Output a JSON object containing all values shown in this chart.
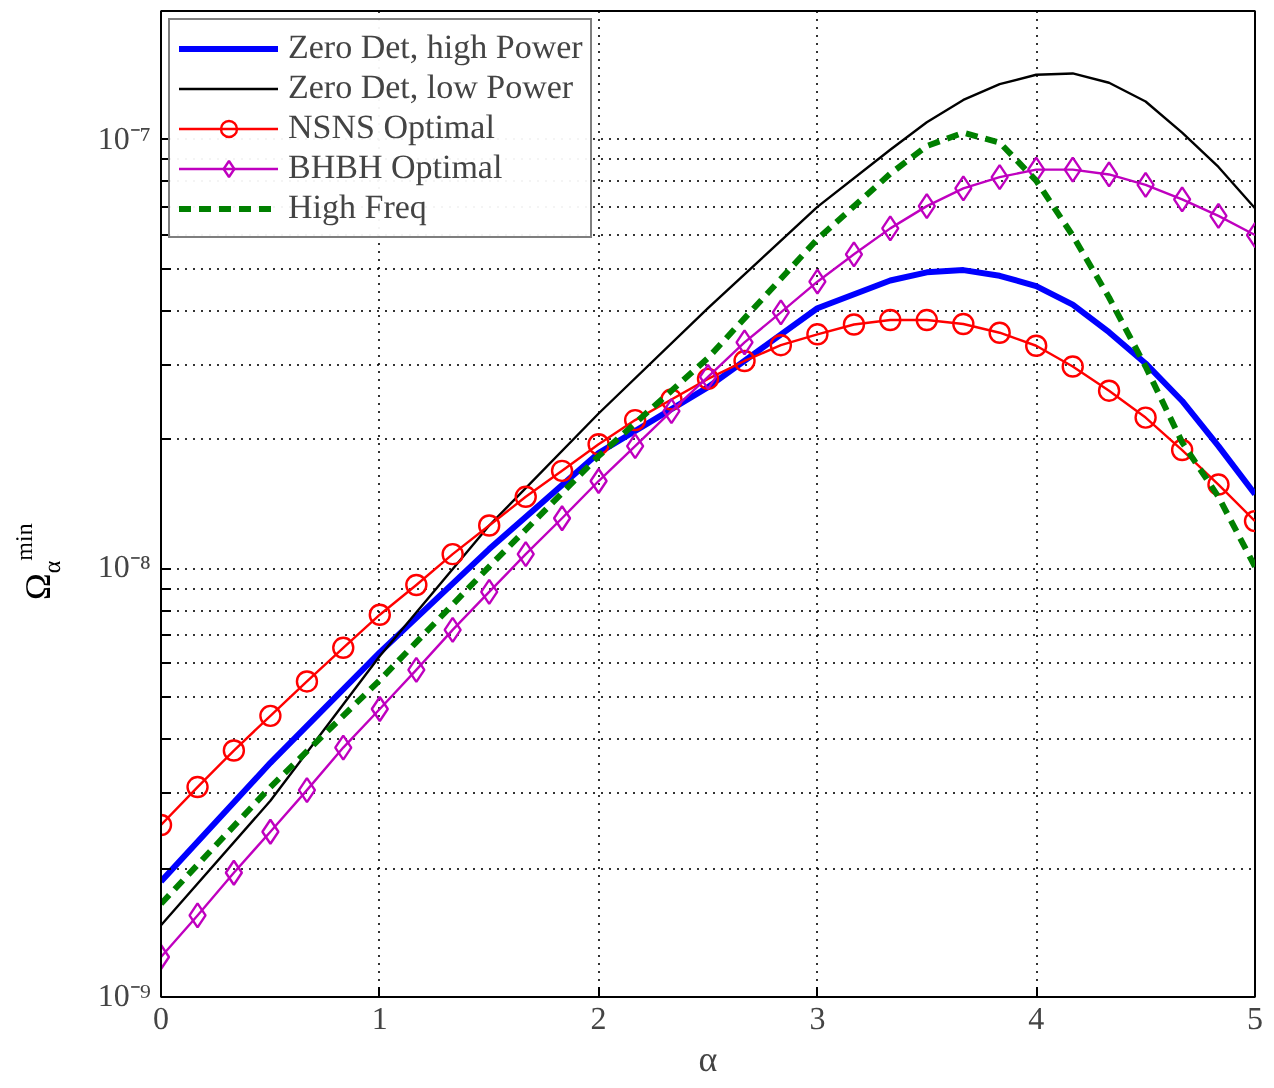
{
  "chart_data": {
    "type": "line",
    "xlabel": "α",
    "ylabel": "Ω$_{α}$$^{min}$",
    "log": "y",
    "grid": true,
    "legend": "top left",
    "xlim": [
      0,
      5
    ],
    "xticks": [
      0,
      1,
      2,
      3,
      4,
      5
    ],
    "ylim": [
      1e-09,
      2e-07
    ],
    "yticks": [
      {
        "value": 1e-09,
        "label": "10⁻⁹"
      },
      {
        "value": 2e-09,
        "label": null
      },
      {
        "value": 3e-09,
        "label": null
      },
      {
        "value": 4e-09,
        "label": null
      },
      {
        "value": 5e-09,
        "label": null
      },
      {
        "value": 6e-09,
        "label": null
      },
      {
        "value": 7e-09,
        "label": null
      },
      {
        "value": 8e-09,
        "label": null
      },
      {
        "value": 9e-09,
        "label": null
      },
      {
        "value": 1e-08,
        "label": "10⁻⁸"
      },
      {
        "value": 2e-08,
        "label": null
      },
      {
        "value": 3e-08,
        "label": null
      },
      {
        "value": 4e-08,
        "label": null
      },
      {
        "value": 5e-08,
        "label": null
      },
      {
        "value": 6e-08,
        "label": null
      },
      {
        "value": 7e-08,
        "label": null
      },
      {
        "value": 8e-08,
        "label": null
      },
      {
        "value": 9e-08,
        "label": null
      },
      {
        "value": 1e-07,
        "label": "10⁻⁷"
      },
      {
        "value": 2e-07,
        "label": null
      }
    ],
    "series": [
      {
        "name": "Zero Det, high Power",
        "color": "#0000ff",
        "marker": "none",
        "line_style": "solid",
        "x": [
          0,
          0.5,
          1,
          1.5,
          2,
          2.5,
          3,
          3.333,
          3.5,
          3.667,
          3.833,
          4,
          4.167,
          4.333,
          4.5,
          4.667,
          4.833,
          5
        ],
        "values": [
          1.86e-09,
          3.52e-09,
          6.37e-09,
          1.11e-08,
          1.86e-08,
          2.65e-08,
          4.05e-08,
          4.7e-08,
          4.91e-08,
          4.97e-08,
          4.82e-08,
          4.56e-08,
          4.13e-08,
          3.56e-08,
          3.01e-08,
          2.46e-08,
          1.93e-08,
          1.49e-08
        ]
      },
      {
        "name": "Zero Det, low Power",
        "color": "#000000",
        "marker": "none",
        "line_style": "solid",
        "x": [
          0,
          0.5,
          1,
          1.5,
          2,
          2.5,
          3,
          3.333,
          3.5,
          3.667,
          3.833,
          4,
          4.167,
          4.333,
          4.5,
          4.667,
          4.833,
          5
        ],
        "values": [
          1.47e-09,
          2.87e-09,
          6.25e-09,
          1.26e-08,
          2.3e-08,
          4.05e-08,
          6.98e-08,
          9.49e-08,
          1.1e-07,
          1.24e-07,
          1.35e-07,
          1.42e-07,
          1.43e-07,
          1.36e-07,
          1.23e-07,
          1.04e-07,
          8.65e-08,
          6.93e-08
        ]
      },
      {
        "name": "NSNS Optimal",
        "color": "#ff0000",
        "marker": "circle",
        "line_style": "solid",
        "x": [
          0,
          0.167,
          0.333,
          0.5,
          0.667,
          0.833,
          1,
          1.167,
          1.333,
          1.5,
          1.667,
          1.833,
          2,
          2.167,
          2.333,
          2.5,
          2.667,
          2.833,
          3,
          3.167,
          3.333,
          3.5,
          3.667,
          3.833,
          4,
          4.167,
          4.333,
          4.5,
          4.667,
          4.833,
          5
        ],
        "values": [
          2.52e-09,
          3.09e-09,
          3.76e-09,
          4.53e-09,
          5.45e-09,
          6.53e-09,
          7.8e-09,
          9.15e-09,
          1.08e-08,
          1.26e-08,
          1.47e-08,
          1.69e-08,
          1.95e-08,
          2.22e-08,
          2.48e-08,
          2.77e-08,
          3.05e-08,
          3.32e-08,
          3.52e-08,
          3.71e-08,
          3.8e-08,
          3.8e-08,
          3.72e-08,
          3.55e-08,
          3.31e-08,
          2.96e-08,
          2.6e-08,
          2.25e-08,
          1.89e-08,
          1.57e-08,
          1.29e-08
        ]
      },
      {
        "name": "BHBH Optimal",
        "color": "#bf00bf",
        "marker": "diamond",
        "line_style": "solid",
        "x": [
          0,
          0.167,
          0.333,
          0.5,
          0.667,
          0.833,
          1,
          1.167,
          1.333,
          1.5,
          1.667,
          1.833,
          2,
          2.167,
          2.333,
          2.5,
          2.667,
          2.833,
          3,
          3.167,
          3.333,
          3.5,
          3.667,
          3.833,
          4,
          4.167,
          4.333,
          4.5,
          4.667,
          4.833,
          5
        ],
        "values": [
          1.24e-09,
          1.55e-09,
          1.95e-09,
          2.43e-09,
          3.04e-09,
          3.82e-09,
          4.7e-09,
          5.8e-09,
          7.19e-09,
          8.82e-09,
          1.08e-08,
          1.31e-08,
          1.6e-08,
          1.93e-08,
          2.33e-08,
          2.8e-08,
          3.37e-08,
          3.96e-08,
          4.67e-08,
          5.41e-08,
          6.22e-08,
          7.01e-08,
          7.71e-08,
          8.19e-08,
          8.53e-08,
          8.53e-08,
          8.31e-08,
          7.86e-08,
          7.27e-08,
          6.65e-08,
          6e-08
        ]
      },
      {
        "name": "High Freq",
        "color": "#008000",
        "marker": "none",
        "line_style": "dashed",
        "x": [
          0,
          0.5,
          1,
          1.5,
          2,
          2.5,
          3,
          3.333,
          3.5,
          3.667,
          3.833,
          4,
          4.167,
          4.333,
          4.5,
          4.667,
          4.833,
          5
        ],
        "values": [
          1.65e-09,
          3.09e-09,
          5.49e-09,
          1.01e-08,
          1.83e-08,
          3.1e-08,
          5.87e-08,
          8.34e-08,
          9.68e-08,
          1.04e-07,
          9.86e-08,
          8.04e-08,
          5.98e-08,
          4.29e-08,
          2.96e-08,
          1.97e-08,
          1.47e-08,
          1.01e-08
        ]
      }
    ]
  }
}
